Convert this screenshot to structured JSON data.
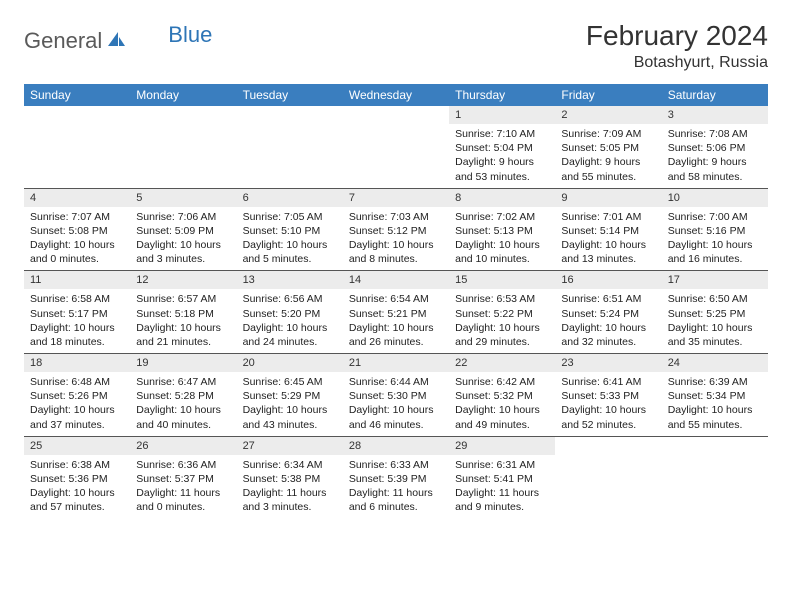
{
  "brand": {
    "part1": "General",
    "part2": "Blue"
  },
  "title": "February 2024",
  "location": "Botashyurt, Russia",
  "colors": {
    "header_bg": "#3a7ebf",
    "header_text": "#ffffff",
    "daynum_bg": "#ececec",
    "text": "#222222",
    "border": "#555555",
    "logo_gray": "#5a5a5a",
    "logo_blue": "#2e75b6"
  },
  "typography": {
    "title_fontsize": 28,
    "location_fontsize": 16,
    "header_fontsize": 12,
    "body_fontsize": 10.5,
    "logo_fontsize": 22
  },
  "weekdays": [
    "Sunday",
    "Monday",
    "Tuesday",
    "Wednesday",
    "Thursday",
    "Friday",
    "Saturday"
  ],
  "weeks": [
    [
      {
        "empty": true
      },
      {
        "empty": true
      },
      {
        "empty": true
      },
      {
        "empty": true
      },
      {
        "day": "1",
        "sunrise": "Sunrise: 7:10 AM",
        "sunset": "Sunset: 5:04 PM",
        "daylight": "Daylight: 9 hours and 53 minutes."
      },
      {
        "day": "2",
        "sunrise": "Sunrise: 7:09 AM",
        "sunset": "Sunset: 5:05 PM",
        "daylight": "Daylight: 9 hours and 55 minutes."
      },
      {
        "day": "3",
        "sunrise": "Sunrise: 7:08 AM",
        "sunset": "Sunset: 5:06 PM",
        "daylight": "Daylight: 9 hours and 58 minutes."
      }
    ],
    [
      {
        "day": "4",
        "sunrise": "Sunrise: 7:07 AM",
        "sunset": "Sunset: 5:08 PM",
        "daylight": "Daylight: 10 hours and 0 minutes."
      },
      {
        "day": "5",
        "sunrise": "Sunrise: 7:06 AM",
        "sunset": "Sunset: 5:09 PM",
        "daylight": "Daylight: 10 hours and 3 minutes."
      },
      {
        "day": "6",
        "sunrise": "Sunrise: 7:05 AM",
        "sunset": "Sunset: 5:10 PM",
        "daylight": "Daylight: 10 hours and 5 minutes."
      },
      {
        "day": "7",
        "sunrise": "Sunrise: 7:03 AM",
        "sunset": "Sunset: 5:12 PM",
        "daylight": "Daylight: 10 hours and 8 minutes."
      },
      {
        "day": "8",
        "sunrise": "Sunrise: 7:02 AM",
        "sunset": "Sunset: 5:13 PM",
        "daylight": "Daylight: 10 hours and 10 minutes."
      },
      {
        "day": "9",
        "sunrise": "Sunrise: 7:01 AM",
        "sunset": "Sunset: 5:14 PM",
        "daylight": "Daylight: 10 hours and 13 minutes."
      },
      {
        "day": "10",
        "sunrise": "Sunrise: 7:00 AM",
        "sunset": "Sunset: 5:16 PM",
        "daylight": "Daylight: 10 hours and 16 minutes."
      }
    ],
    [
      {
        "day": "11",
        "sunrise": "Sunrise: 6:58 AM",
        "sunset": "Sunset: 5:17 PM",
        "daylight": "Daylight: 10 hours and 18 minutes."
      },
      {
        "day": "12",
        "sunrise": "Sunrise: 6:57 AM",
        "sunset": "Sunset: 5:18 PM",
        "daylight": "Daylight: 10 hours and 21 minutes."
      },
      {
        "day": "13",
        "sunrise": "Sunrise: 6:56 AM",
        "sunset": "Sunset: 5:20 PM",
        "daylight": "Daylight: 10 hours and 24 minutes."
      },
      {
        "day": "14",
        "sunrise": "Sunrise: 6:54 AM",
        "sunset": "Sunset: 5:21 PM",
        "daylight": "Daylight: 10 hours and 26 minutes."
      },
      {
        "day": "15",
        "sunrise": "Sunrise: 6:53 AM",
        "sunset": "Sunset: 5:22 PM",
        "daylight": "Daylight: 10 hours and 29 minutes."
      },
      {
        "day": "16",
        "sunrise": "Sunrise: 6:51 AM",
        "sunset": "Sunset: 5:24 PM",
        "daylight": "Daylight: 10 hours and 32 minutes."
      },
      {
        "day": "17",
        "sunrise": "Sunrise: 6:50 AM",
        "sunset": "Sunset: 5:25 PM",
        "daylight": "Daylight: 10 hours and 35 minutes."
      }
    ],
    [
      {
        "day": "18",
        "sunrise": "Sunrise: 6:48 AM",
        "sunset": "Sunset: 5:26 PM",
        "daylight": "Daylight: 10 hours and 37 minutes."
      },
      {
        "day": "19",
        "sunrise": "Sunrise: 6:47 AM",
        "sunset": "Sunset: 5:28 PM",
        "daylight": "Daylight: 10 hours and 40 minutes."
      },
      {
        "day": "20",
        "sunrise": "Sunrise: 6:45 AM",
        "sunset": "Sunset: 5:29 PM",
        "daylight": "Daylight: 10 hours and 43 minutes."
      },
      {
        "day": "21",
        "sunrise": "Sunrise: 6:44 AM",
        "sunset": "Sunset: 5:30 PM",
        "daylight": "Daylight: 10 hours and 46 minutes."
      },
      {
        "day": "22",
        "sunrise": "Sunrise: 6:42 AM",
        "sunset": "Sunset: 5:32 PM",
        "daylight": "Daylight: 10 hours and 49 minutes."
      },
      {
        "day": "23",
        "sunrise": "Sunrise: 6:41 AM",
        "sunset": "Sunset: 5:33 PM",
        "daylight": "Daylight: 10 hours and 52 minutes."
      },
      {
        "day": "24",
        "sunrise": "Sunrise: 6:39 AM",
        "sunset": "Sunset: 5:34 PM",
        "daylight": "Daylight: 10 hours and 55 minutes."
      }
    ],
    [
      {
        "day": "25",
        "sunrise": "Sunrise: 6:38 AM",
        "sunset": "Sunset: 5:36 PM",
        "daylight": "Daylight: 10 hours and 57 minutes."
      },
      {
        "day": "26",
        "sunrise": "Sunrise: 6:36 AM",
        "sunset": "Sunset: 5:37 PM",
        "daylight": "Daylight: 11 hours and 0 minutes."
      },
      {
        "day": "27",
        "sunrise": "Sunrise: 6:34 AM",
        "sunset": "Sunset: 5:38 PM",
        "daylight": "Daylight: 11 hours and 3 minutes."
      },
      {
        "day": "28",
        "sunrise": "Sunrise: 6:33 AM",
        "sunset": "Sunset: 5:39 PM",
        "daylight": "Daylight: 11 hours and 6 minutes."
      },
      {
        "day": "29",
        "sunrise": "Sunrise: 6:31 AM",
        "sunset": "Sunset: 5:41 PM",
        "daylight": "Daylight: 11 hours and 9 minutes."
      },
      {
        "empty": true
      },
      {
        "empty": true
      }
    ]
  ]
}
